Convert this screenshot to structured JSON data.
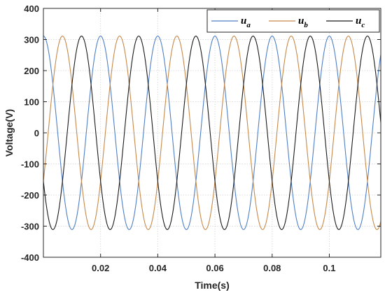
{
  "chart_data": {
    "type": "line",
    "title": "",
    "xlabel": "Time(s)",
    "ylabel": "Voltage(V)",
    "xlim": [
      0,
      0.118
    ],
    "ylim": [
      -400,
      400
    ],
    "x_ticks": [
      0.02,
      0.04,
      0.06,
      0.08,
      0.1
    ],
    "x_tick_labels": [
      "0.02",
      "0.04",
      "0.06",
      "0.08",
      "0.1"
    ],
    "y_ticks": [
      -400,
      -300,
      -200,
      -100,
      0,
      100,
      200,
      300,
      400
    ],
    "y_tick_labels": [
      "-400",
      "-300",
      "-200",
      "-100",
      "0",
      "100",
      "200",
      "300",
      "400"
    ],
    "grid": true,
    "legend_position": "top-right",
    "legend_orientation": "horizontal",
    "series": [
      {
        "base": "u",
        "sub": "a",
        "color": "#4f7fc7",
        "amplitude": 311,
        "frequency_hz": 50,
        "phase_deg": 90,
        "y": [
          311,
          0,
          -311,
          0,
          311
        ]
      },
      {
        "base": "u",
        "sub": "b",
        "color": "#c7894a",
        "amplitude": 311,
        "frequency_hz": 50,
        "phase_deg": -30,
        "y": [
          -155.5,
          269.3,
          155.5,
          -269.3,
          -155.5
        ]
      },
      {
        "base": "u",
        "sub": "c",
        "color": "#1a1a1a",
        "amplitude": 311,
        "frequency_hz": 50,
        "phase_deg": 210,
        "y": [
          -155.5,
          -269.3,
          155.5,
          269.3,
          -155.5
        ]
      }
    ],
    "x": [
      0,
      0.005,
      0.01,
      0.015,
      0.02
    ]
  }
}
